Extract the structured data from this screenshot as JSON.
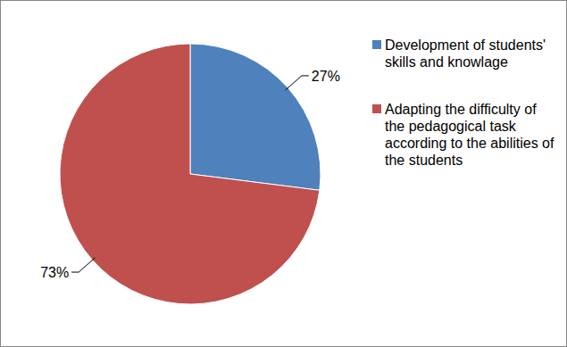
{
  "chart_data": {
    "type": "pie",
    "categories": [
      "Development of students' skills and knowlage",
      "Adapting the difficulty of the pedagogical task according to the abilities of the students"
    ],
    "values": [
      27,
      73
    ],
    "value_labels": [
      "27%",
      "73%"
    ],
    "colors": [
      "#4f81bd",
      "#c0504d"
    ],
    "data_labels": true,
    "legend": "right"
  }
}
